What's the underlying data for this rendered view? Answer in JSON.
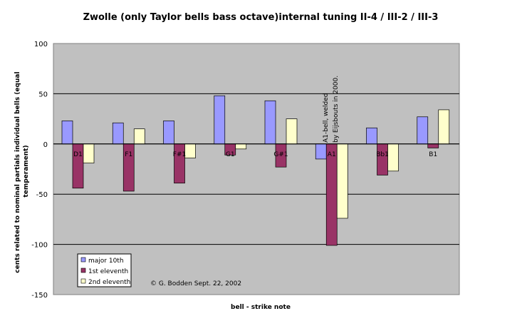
{
  "chart_data": {
    "type": "bar",
    "title": "Zwolle (only Taylor bells bass octave)internal tuning II-4 / III-2 / III-3",
    "xlabel": "bell - strike note",
    "ylabel": "cents related to nominal partials individual bells (equal temperament)",
    "ylim": [
      -150,
      100
    ],
    "yticks": [
      100,
      50,
      0,
      -50,
      -100,
      -150
    ],
    "grid": true,
    "legend_position": "bottom-left",
    "categories": [
      "D1",
      "F1",
      "F#1",
      "G1",
      "G#1",
      "A1",
      "Bb1",
      "B1"
    ],
    "series": [
      {
        "name": "major 10th",
        "color": "#9999ff",
        "values": [
          23,
          21,
          23,
          48,
          43,
          -15,
          16,
          27
        ]
      },
      {
        "name": "1st eleventh",
        "color": "#993366",
        "values": [
          -44,
          -47,
          -39,
          -11,
          -23,
          -101,
          -31,
          -4
        ]
      },
      {
        "name": "2nd eleventh",
        "color": "#ffffcc",
        "values": [
          -19,
          15,
          -14,
          -5,
          25,
          -74,
          -27,
          34
        ]
      }
    ],
    "annotations": [
      {
        "text": "A1-bell, welded",
        "category": "A1"
      },
      {
        "text": "by Eijsbouts in 2000.",
        "category": "A1"
      },
      {
        "text": "© G. Bodden Sept. 22, 2002"
      }
    ]
  }
}
